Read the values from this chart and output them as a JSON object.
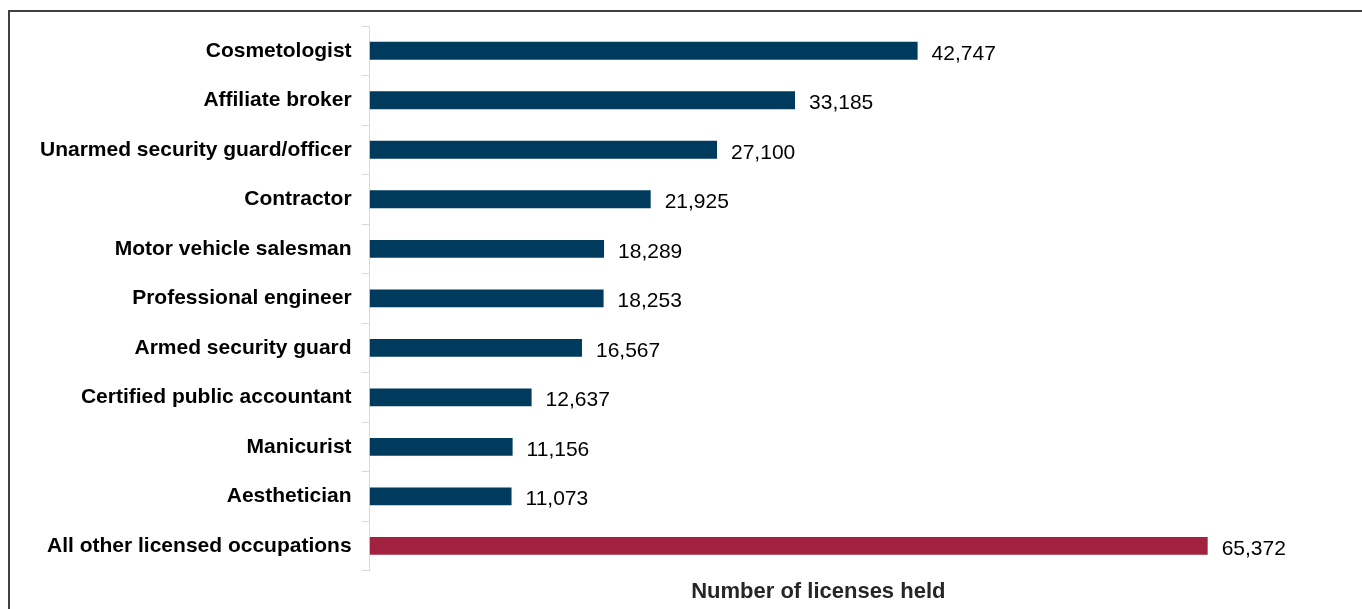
{
  "chart_data": {
    "type": "bar",
    "orientation": "horizontal",
    "xlabel": "Number of licenses held",
    "categories": [
      "Cosmetologist",
      "Affiliate broker",
      "Unarmed security guard/officer",
      "Contractor",
      "Motor vehicle salesman",
      "Professional engineer",
      "Armed security guard",
      "Certified public accountant",
      "Manicurist",
      "Aesthetician",
      "All other licensed occupations"
    ],
    "values": [
      42747,
      33185,
      27100,
      21925,
      18289,
      18253,
      16567,
      12637,
      11156,
      11073,
      65372
    ],
    "colors": [
      "#003a5c",
      "#003a5c",
      "#003a5c",
      "#003a5c",
      "#003a5c",
      "#003a5c",
      "#003a5c",
      "#003a5c",
      "#003a5c",
      "#003a5c",
      "#a0223e"
    ],
    "value_labels": [
      "42,747",
      "33,185",
      "27,100",
      "21,925",
      "18,289",
      "18,253",
      "16,567",
      "12,637",
      "11,156",
      "11,073",
      "65,372"
    ],
    "legend": false,
    "grid": false
  }
}
